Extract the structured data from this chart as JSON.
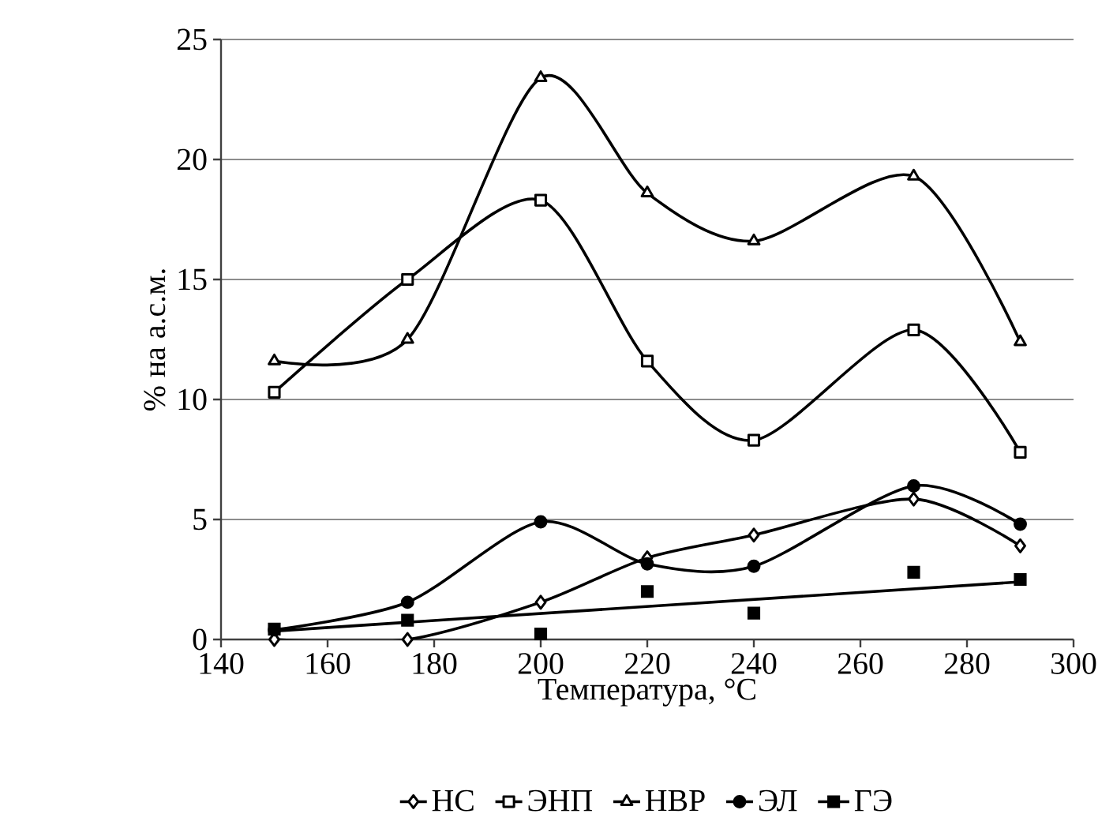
{
  "chart_data": {
    "type": "line",
    "xlabel": "Температура, °C",
    "ylabel": "% на а.с.м.",
    "xlim": [
      140,
      300
    ],
    "xticks": [
      140,
      160,
      180,
      200,
      220,
      240,
      260,
      280,
      300
    ],
    "ylim": [
      0,
      25
    ],
    "yticks": [
      0,
      5,
      10,
      15,
      20,
      25
    ],
    "grid": "y",
    "legend": "bottom",
    "x": [
      150,
      175,
      200,
      220,
      240,
      270,
      290
    ],
    "series": [
      {
        "name": "НС",
        "color": "#000000",
        "marker": "diamond",
        "values": [
          0.0,
          0.0,
          1.55,
          3.4,
          4.35,
          5.85,
          3.9
        ]
      },
      {
        "name": "ЭНП",
        "color": "#000000",
        "marker": "square",
        "values": [
          10.3,
          15.0,
          18.3,
          11.6,
          8.3,
          12.9,
          7.8
        ]
      },
      {
        "name": "НВР",
        "color": "#000000",
        "marker": "triangle",
        "values": [
          11.6,
          12.5,
          23.4,
          18.6,
          16.6,
          19.3,
          12.4
        ]
      },
      {
        "name": "ЭЛ",
        "color": "#000000",
        "marker": "circle",
        "values": [
          0.4,
          1.55,
          4.9,
          3.15,
          3.05,
          6.4,
          4.8
        ]
      },
      {
        "name": "ГЭ",
        "color": "#000000",
        "type": "scatter",
        "marker": "square",
        "values": [
          0.43,
          0.8,
          0.23,
          2.0,
          1.1,
          2.8,
          2.5
        ]
      },
      {
        "type": "line",
        "color": "#000000",
        "marker": "none",
        "x": [
          150,
          290
        ],
        "values": [
          0.35,
          2.4
        ]
      }
    ]
  }
}
